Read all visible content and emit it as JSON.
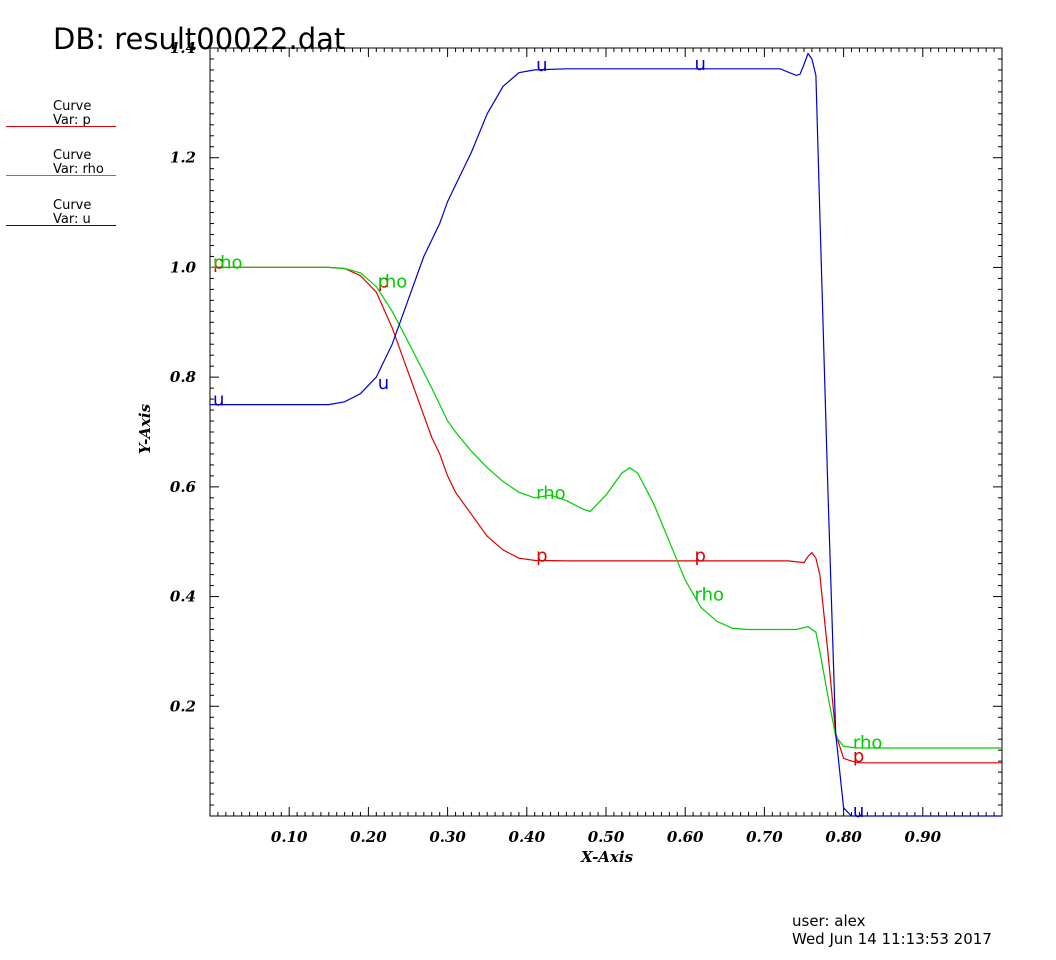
{
  "title": "DB: result00022.dat",
  "legend": [
    {
      "line1": "Curve",
      "line2": "Var: p",
      "color": "#dd0000"
    },
    {
      "line1": "Curve",
      "line2": "Var: rho",
      "color": "#00cc00"
    },
    {
      "line1": "Curve",
      "line2": "Var: u",
      "color": "#0000cc"
    }
  ],
  "footer": {
    "user": "user: alex",
    "date": "Wed Jun 14 11:13:53 2017"
  },
  "chart_data": {
    "type": "line",
    "xlabel": "X-Axis",
    "ylabel": "Y-Axis",
    "xlim": [
      0.0,
      1.0
    ],
    "ylim": [
      0.0,
      1.4
    ],
    "xticks": [
      0.1,
      0.2,
      0.3,
      0.4,
      0.5,
      0.6,
      0.7,
      0.8,
      0.9
    ],
    "xtick_labels": [
      "0.10",
      "0.20",
      "0.30",
      "0.40",
      "0.50",
      "0.60",
      "0.70",
      "0.80",
      "0.90"
    ],
    "yticks": [
      0.2,
      0.4,
      0.6,
      0.8,
      1.0,
      1.2,
      1.4
    ],
    "ytick_labels": [
      "0.2",
      "0.4",
      "0.6",
      "0.8",
      "1.0",
      "1.2",
      "1.4"
    ],
    "grid": false,
    "series": [
      {
        "name": "p",
        "color": "#dd0000",
        "x": [
          0.0,
          0.1,
          0.15,
          0.17,
          0.19,
          0.21,
          0.23,
          0.25,
          0.28,
          0.29,
          0.3,
          0.31,
          0.33,
          0.35,
          0.37,
          0.39,
          0.41,
          0.45,
          0.5,
          0.55,
          0.6,
          0.65,
          0.7,
          0.73,
          0.75,
          0.755,
          0.76,
          0.765,
          0.77,
          0.78,
          0.79,
          0.8,
          0.81,
          0.82,
          0.85,
          0.9,
          1.0
        ],
        "y": [
          1.0,
          1.0,
          1.0,
          0.998,
          0.985,
          0.955,
          0.89,
          0.81,
          0.69,
          0.66,
          0.62,
          0.59,
          0.55,
          0.51,
          0.485,
          0.47,
          0.466,
          0.465,
          0.465,
          0.465,
          0.465,
          0.465,
          0.465,
          0.465,
          0.462,
          0.473,
          0.48,
          0.47,
          0.44,
          0.3,
          0.15,
          0.105,
          0.1,
          0.097,
          0.097,
          0.097,
          0.097
        ],
        "labels": [
          {
            "x": 0.0,
            "y": 1.0,
            "text": "p"
          },
          {
            "x": 0.208,
            "y": 0.965,
            "text": "p"
          },
          {
            "x": 0.408,
            "y": 0.466,
            "text": "p"
          },
          {
            "x": 0.608,
            "y": 0.466,
            "text": "p"
          },
          {
            "x": 0.808,
            "y": 0.1,
            "text": "p"
          }
        ]
      },
      {
        "name": "rho",
        "color": "#00cc00",
        "x": [
          0.0,
          0.1,
          0.15,
          0.17,
          0.19,
          0.21,
          0.23,
          0.25,
          0.28,
          0.3,
          0.31,
          0.33,
          0.35,
          0.37,
          0.39,
          0.41,
          0.43,
          0.45,
          0.47,
          0.48,
          0.5,
          0.52,
          0.53,
          0.54,
          0.56,
          0.58,
          0.6,
          0.62,
          0.64,
          0.66,
          0.68,
          0.7,
          0.72,
          0.74,
          0.755,
          0.765,
          0.77,
          0.78,
          0.79,
          0.8,
          0.81,
          0.82,
          0.85,
          0.9,
          1.0
        ],
        "y": [
          1.0,
          1.0,
          1.0,
          0.998,
          0.99,
          0.965,
          0.92,
          0.865,
          0.78,
          0.72,
          0.7,
          0.665,
          0.635,
          0.61,
          0.59,
          0.58,
          0.585,
          0.575,
          0.56,
          0.555,
          0.585,
          0.625,
          0.635,
          0.625,
          0.57,
          0.5,
          0.43,
          0.38,
          0.355,
          0.342,
          0.34,
          0.34,
          0.34,
          0.34,
          0.345,
          0.335,
          0.3,
          0.22,
          0.145,
          0.127,
          0.125,
          0.124,
          0.124,
          0.124,
          0.124
        ],
        "labels": [
          {
            "x": 0.0,
            "y": 1.0,
            "text": "rho"
          },
          {
            "x": 0.208,
            "y": 0.965,
            "text": "rho"
          },
          {
            "x": 0.408,
            "y": 0.58,
            "text": "rho"
          },
          {
            "x": 0.608,
            "y": 0.395,
            "text": "rho"
          },
          {
            "x": 0.808,
            "y": 0.125,
            "text": "rho"
          }
        ]
      },
      {
        "name": "u",
        "color": "#0000cc",
        "x": [
          0.0,
          0.1,
          0.15,
          0.17,
          0.19,
          0.21,
          0.23,
          0.25,
          0.27,
          0.29,
          0.3,
          0.31,
          0.33,
          0.35,
          0.37,
          0.39,
          0.41,
          0.45,
          0.5,
          0.55,
          0.6,
          0.65,
          0.7,
          0.72,
          0.74,
          0.745,
          0.75,
          0.755,
          0.76,
          0.765,
          0.77,
          0.78,
          0.79,
          0.8,
          0.81,
          0.82,
          0.85,
          0.9,
          1.0
        ],
        "y": [
          0.75,
          0.75,
          0.75,
          0.755,
          0.77,
          0.8,
          0.86,
          0.94,
          1.02,
          1.08,
          1.12,
          1.15,
          1.21,
          1.28,
          1.33,
          1.355,
          1.36,
          1.362,
          1.362,
          1.362,
          1.362,
          1.362,
          1.362,
          1.362,
          1.35,
          1.352,
          1.37,
          1.39,
          1.38,
          1.35,
          1.1,
          0.6,
          0.15,
          0.015,
          0.0,
          0.0,
          0.0,
          0.0,
          0.0
        ],
        "labels": [
          {
            "x": 0.0,
            "y": 0.75,
            "text": "u"
          },
          {
            "x": 0.208,
            "y": 0.78,
            "text": "u"
          },
          {
            "x": 0.408,
            "y": 1.36,
            "text": "u"
          },
          {
            "x": 0.608,
            "y": 1.362,
            "text": "u"
          },
          {
            "x": 0.808,
            "y": 0.0,
            "text": "u"
          }
        ]
      }
    ]
  }
}
